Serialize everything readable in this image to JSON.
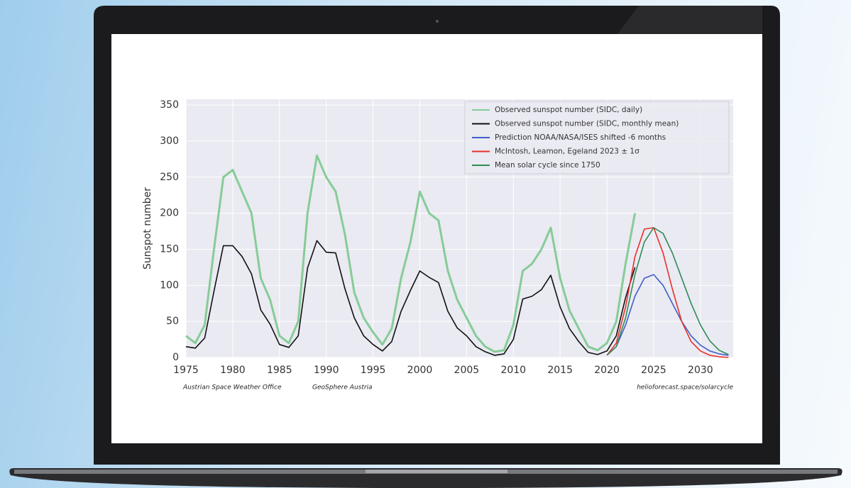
{
  "chart_data": {
    "type": "line",
    "ylabel": "Sunspot number",
    "annotations": [
      "Austrian Space Weather Office",
      "GeoSphere Austria",
      "helioforecast.space/solarcycle"
    ],
    "xlim": [
      1975,
      2033.5
    ],
    "xticks": [
      1975,
      1980,
      1985,
      1990,
      1995,
      2000,
      2005,
      2010,
      2015,
      2020,
      2025,
      2030
    ],
    "ylim": [
      0,
      358
    ],
    "yticks": [
      0,
      50,
      100,
      150,
      200,
      250,
      300,
      350
    ],
    "grid": true,
    "legend": "upper right",
    "x": [
      1975,
      1976,
      1977,
      1978,
      1979,
      1980,
      1981,
      1982,
      1983,
      1984,
      1985,
      1986,
      1987,
      1988,
      1989,
      1990,
      1991,
      1992,
      1993,
      1994,
      1995,
      1996,
      1997,
      1998,
      1999,
      2000,
      2001,
      2002,
      2003,
      2004,
      2005,
      2006,
      2007,
      2008,
      2009,
      2010,
      2011,
      2012,
      2013,
      2014,
      2015,
      2016,
      2017,
      2018,
      2019,
      2020,
      2021,
      2022,
      2023,
      2024,
      2025,
      2026,
      2027,
      2028,
      2029,
      2030,
      2031,
      2032,
      2033
    ],
    "series": [
      {
        "name": "Observed sunspot number (SIDC, daily)",
        "color": "#86cc97",
        "width": 3,
        "values": [
          30,
          20,
          45,
          150,
          250,
          260,
          230,
          200,
          110,
          80,
          30,
          20,
          50,
          200,
          280,
          250,
          230,
          170,
          90,
          55,
          35,
          18,
          40,
          110,
          160,
          230,
          200,
          190,
          120,
          80,
          55,
          30,
          15,
          8,
          10,
          45,
          120,
          130,
          150,
          180,
          110,
          65,
          40,
          15,
          10,
          20,
          50,
          130,
          200,
          null,
          null,
          null,
          null,
          null,
          null,
          null,
          null,
          null,
          null
        ]
      },
      {
        "name": "Observed sunspot number (SIDC, monthly mean)",
        "color": "#111111",
        "width": 1.6,
        "values": [
          15,
          13,
          27,
          92,
          155,
          155,
          140,
          116,
          66,
          46,
          18,
          14,
          30,
          124,
          162,
          146,
          145,
          95,
          55,
          30,
          18,
          9,
          22,
          64,
          93,
          120,
          111,
          104,
          64,
          41,
          30,
          15,
          8,
          3,
          5,
          25,
          81,
          85,
          94,
          114,
          70,
          40,
          22,
          7,
          4,
          9,
          30,
          83,
          125,
          null,
          null,
          null,
          null,
          null,
          null,
          null,
          null,
          null,
          null
        ]
      },
      {
        "name": "Prediction NOAA/NASA/ISES shifted -6 months",
        "color": "#3f5fc8",
        "width": 1.6,
        "values": [
          null,
          null,
          null,
          null,
          null,
          null,
          null,
          null,
          null,
          null,
          null,
          null,
          null,
          null,
          null,
          null,
          null,
          null,
          null,
          null,
          null,
          null,
          null,
          null,
          null,
          null,
          null,
          null,
          null,
          null,
          null,
          null,
          null,
          null,
          null,
          null,
          null,
          null,
          null,
          null,
          null,
          null,
          null,
          null,
          null,
          3,
          15,
          45,
          85,
          110,
          115,
          100,
          75,
          50,
          30,
          17,
          9,
          5,
          3
        ]
      },
      {
        "name": "McIntosh, Leamon, Egeland 2023 ± 1σ",
        "color": "#e8302a",
        "width": 1.6,
        "values": [
          null,
          null,
          null,
          null,
          null,
          null,
          null,
          null,
          null,
          null,
          null,
          null,
          null,
          null,
          null,
          null,
          null,
          null,
          null,
          null,
          null,
          null,
          null,
          null,
          null,
          null,
          null,
          null,
          null,
          null,
          null,
          null,
          null,
          null,
          null,
          null,
          null,
          null,
          null,
          null,
          null,
          null,
          null,
          null,
          null,
          3,
          20,
          70,
          140,
          178,
          180,
          145,
          95,
          50,
          22,
          9,
          3,
          1,
          0
        ]
      },
      {
        "name": "Mean solar cycle since 1750",
        "color": "#2e8b57",
        "width": 1.6,
        "values": [
          null,
          null,
          null,
          null,
          null,
          null,
          null,
          null,
          null,
          null,
          null,
          null,
          null,
          null,
          null,
          null,
          null,
          null,
          null,
          null,
          null,
          null,
          null,
          null,
          null,
          null,
          null,
          null,
          null,
          null,
          null,
          null,
          null,
          null,
          null,
          null,
          null,
          null,
          null,
          null,
          null,
          null,
          null,
          null,
          null,
          3,
          15,
          55,
          115,
          160,
          180,
          172,
          145,
          110,
          75,
          45,
          23,
          10,
          4
        ]
      }
    ]
  }
}
